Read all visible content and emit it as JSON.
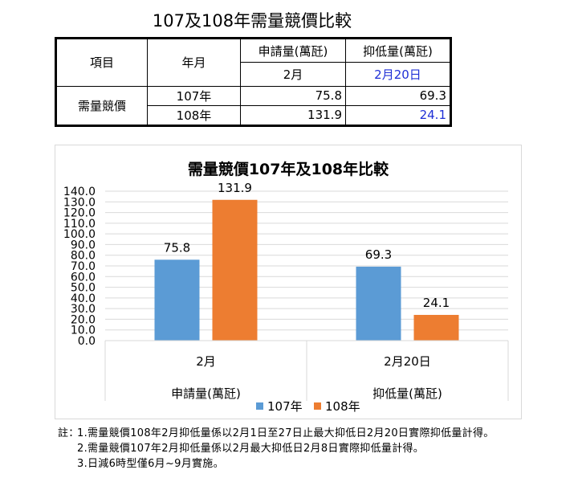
{
  "document_title": "107及108年需量競價比較",
  "table": {
    "col_item": "項目",
    "col_year": "年月",
    "col_apply": "申請量(萬瓩)",
    "col_reduce": "抑低量(萬瓩)",
    "sub_apply": "2月",
    "sub_reduce": "2月20日",
    "row_label": "需量競價",
    "rows": [
      {
        "year": "107年",
        "apply": "75.8",
        "reduce": "69.3"
      },
      {
        "year": "108年",
        "apply": "131.9",
        "reduce": "24.1"
      }
    ]
  },
  "chart_data": {
    "type": "bar",
    "title": "需量競價107年及108年比較",
    "categories": [
      "2月",
      "2月20日"
    ],
    "category_groups": [
      "申請量(萬瓩)",
      "抑低量(萬瓩)"
    ],
    "series": [
      {
        "name": "107年",
        "values": [
          75.8,
          69.3
        ],
        "color": "#5b9bd5"
      },
      {
        "name": "108年",
        "values": [
          131.9,
          24.1
        ],
        "color": "#ed7d31"
      }
    ],
    "ylim": [
      0,
      140
    ],
    "ystep": 10,
    "ytick_labels": [
      "0.0",
      "10.0",
      "20.0",
      "30.0",
      "40.0",
      "50.0",
      "60.0",
      "70.0",
      "80.0",
      "90.0",
      "100.0",
      "110.0",
      "120.0",
      "130.0",
      "140.0"
    ],
    "grid": true,
    "legend": "bottom"
  },
  "notes": {
    "prefix": "註：",
    "lines": [
      "1.需量競價108年2月抑低量係以2月1日至27日止最大抑低日2月20日實際抑低量計得。",
      "2.需量競價107年2月抑低量係以2月最大抑低日2月8日實際抑低量計得。",
      "3.日減6時型僅6月~9月實施。"
    ]
  }
}
